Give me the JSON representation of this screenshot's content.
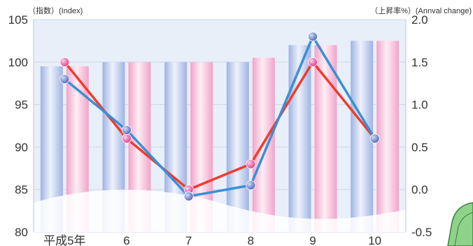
{
  "chart_data": {
    "type": "bar+line",
    "left_axis_label": "（指数）(Index)",
    "right_axis_label": "（上昇率%）(Annval change)",
    "categories": [
      "平成5年",
      "6",
      "7",
      "8",
      "9",
      "10"
    ],
    "left_axis": {
      "ylim": [
        80,
        105
      ],
      "ticks": [
        "80",
        "85",
        "90",
        "95",
        "100",
        "105"
      ]
    },
    "right_axis": {
      "ylim": [
        -0.5,
        2.0
      ],
      "ticks": [
        "-0.5",
        "0.0",
        "0.5",
        "1.0",
        "1.5",
        "2.0"
      ]
    },
    "bar_series": [
      {
        "color": "#a9bce6",
        "values": [
          99.5,
          100,
          100,
          100,
          102,
          102.5
        ]
      },
      {
        "color": "#f3a8cc",
        "values": [
          99.5,
          100,
          100,
          100.5,
          102,
          102.5
        ]
      }
    ],
    "line_series": [
      {
        "color": "#ee3d2c",
        "marker": "#e94f9d",
        "axis": "right",
        "values": [
          1.5,
          0.6,
          0.0,
          0.3,
          1.5,
          0.6
        ]
      },
      {
        "color": "#3a8fd6",
        "marker": "#6b84d0",
        "axis": "right",
        "values": [
          1.3,
          0.7,
          -0.08,
          0.05,
          1.8,
          0.6
        ]
      }
    ],
    "grid": true
  }
}
